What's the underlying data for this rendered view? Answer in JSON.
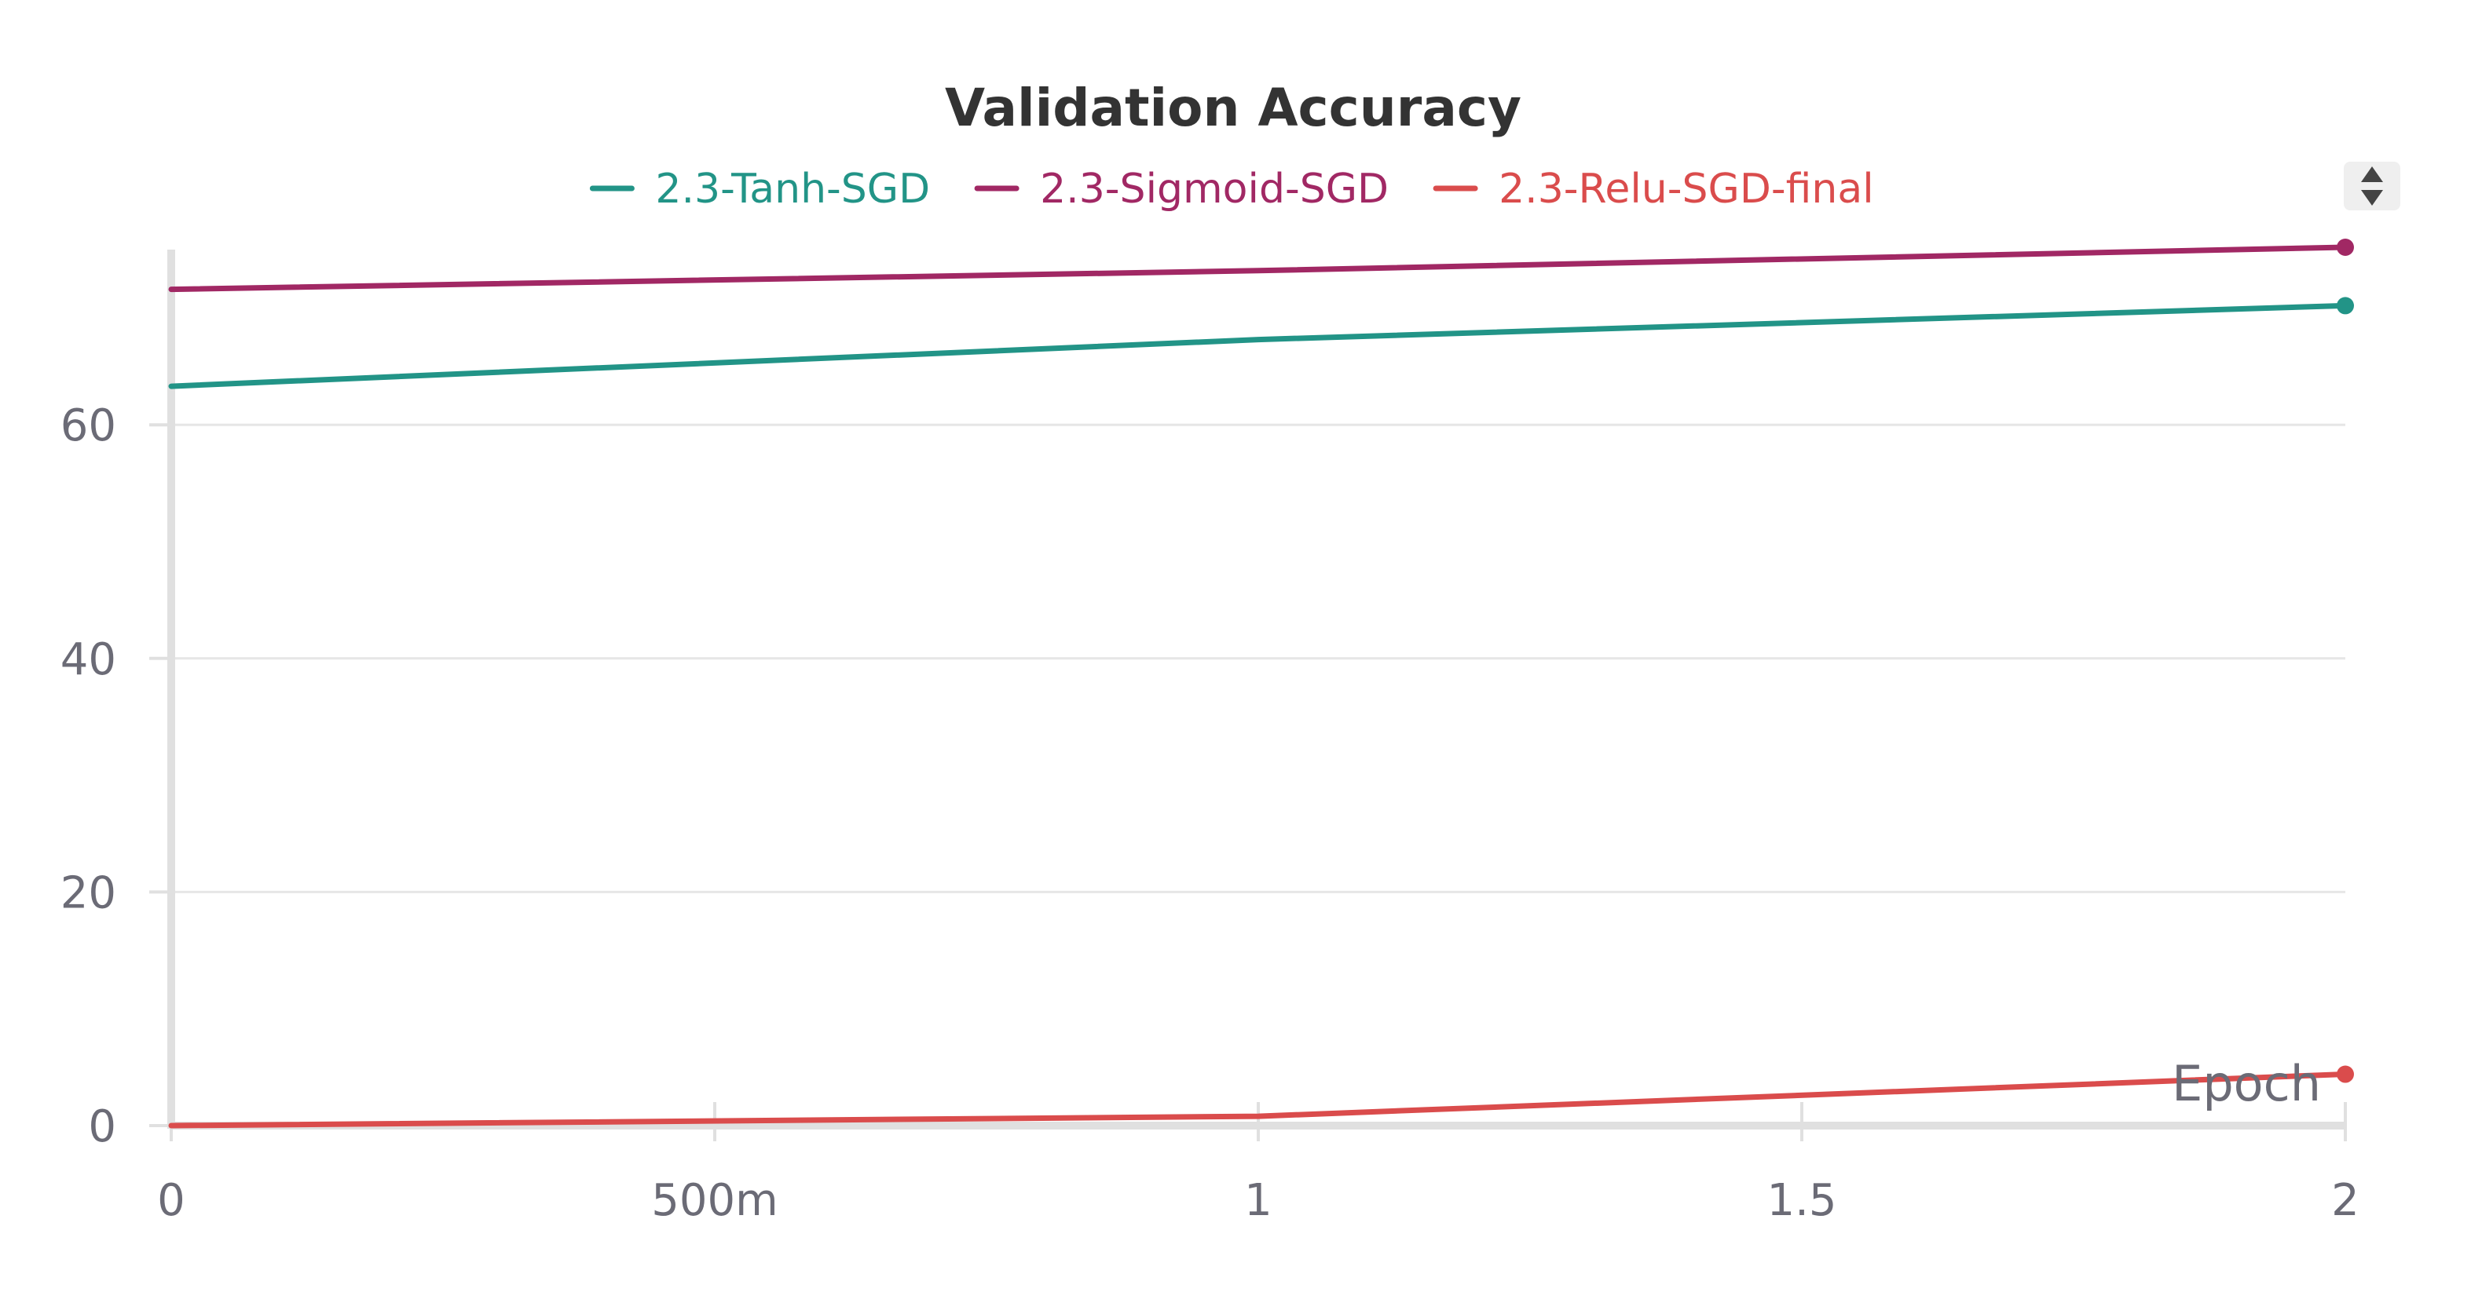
{
  "chart_data": {
    "type": "line",
    "title": "Validation Accuracy",
    "xlabel": "Epoch",
    "ylabel": "",
    "xlim": [
      0,
      2
    ],
    "ylim": [
      0,
      75
    ],
    "x_ticks": [
      {
        "value": 0,
        "label": "0"
      },
      {
        "value": 0.5,
        "label": "500m"
      },
      {
        "value": 1,
        "label": "1"
      },
      {
        "value": 1.5,
        "label": "1.5"
      },
      {
        "value": 2,
        "label": "2"
      }
    ],
    "y_ticks": [
      {
        "value": 0,
        "label": "0"
      },
      {
        "value": 20,
        "label": "20"
      },
      {
        "value": 40,
        "label": "40"
      },
      {
        "value": 60,
        "label": "60"
      }
    ],
    "grid": true,
    "legend_position": "top-center",
    "series": [
      {
        "name": "2.3-Tanh-SGD",
        "color": "#229487",
        "x": [
          0,
          1,
          2
        ],
        "values": [
          63.3,
          67.3,
          70.2
        ]
      },
      {
        "name": "2.3-Sigmoid-SGD",
        "color": "#A12864",
        "x": [
          0,
          1,
          2
        ],
        "values": [
          71.6,
          73.2,
          75.2
        ]
      },
      {
        "name": "2.3-Relu-SGD-final",
        "color": "#DA4C4C",
        "x": [
          0,
          1,
          2
        ],
        "values": [
          0.0,
          0.8,
          4.4
        ]
      }
    ]
  },
  "controls": {
    "scroll_icon": "up-down-arrows-icon"
  }
}
